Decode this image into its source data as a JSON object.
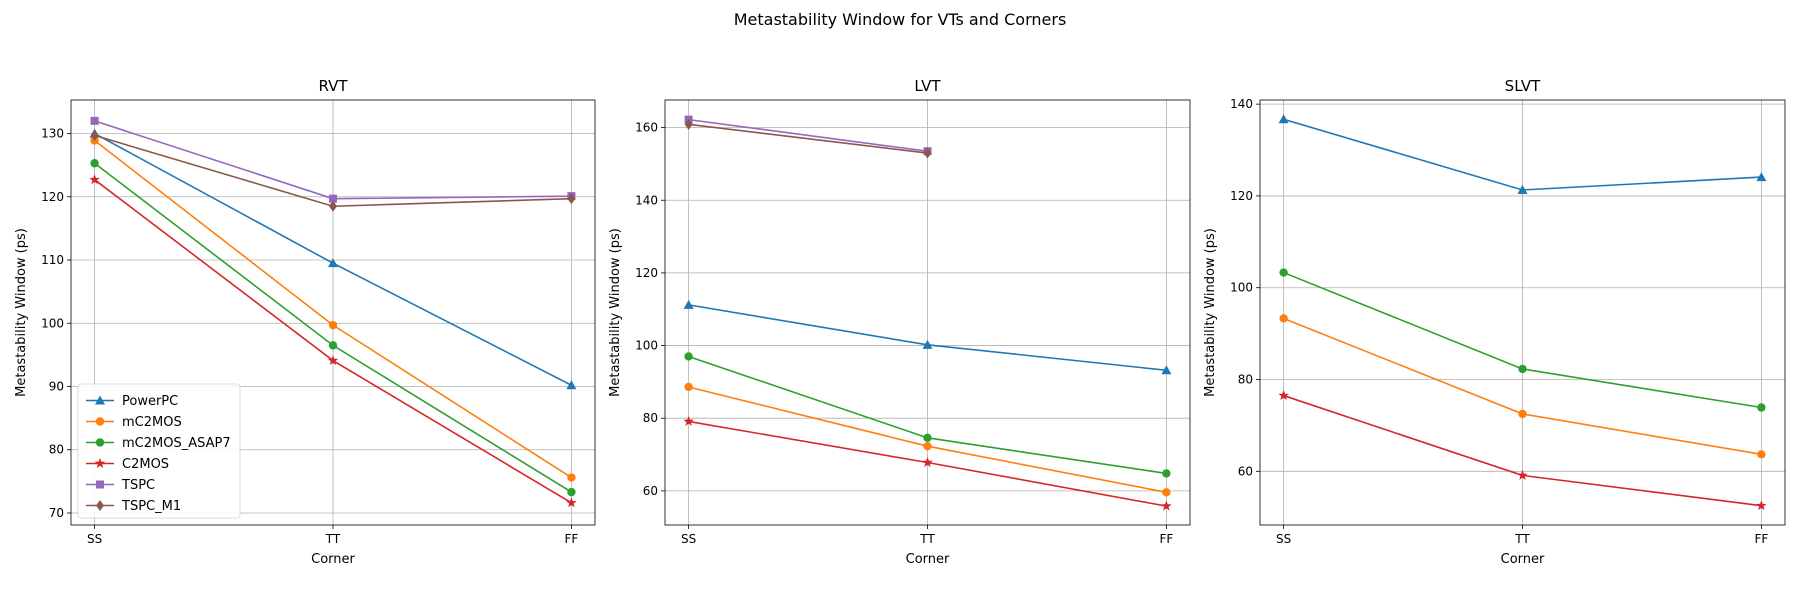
{
  "figure_title": "Metastability Window for VTs and Corners",
  "chart_data": [
    {
      "type": "line",
      "title": "RVT",
      "xlabel": "Corner",
      "ylabel": "Metastability Window (ps)",
      "categories": [
        "SS",
        "TT",
        "FF"
      ],
      "ylim": [
        68.1,
        135.3
      ],
      "yticks": [
        70,
        80,
        90,
        100,
        110,
        120,
        130
      ],
      "grid": true,
      "legend": "lower-left",
      "series": [
        {
          "name": "PowerPC",
          "color": "#1f77b4",
          "marker": "triangle",
          "values": [
            130.0,
            109.5,
            90.2
          ]
        },
        {
          "name": "mC2MOS",
          "color": "#ff7f0e",
          "marker": "circle",
          "values": [
            128.9,
            99.7,
            75.6
          ]
        },
        {
          "name": "mC2MOS_ASAP7",
          "color": "#2ca02c",
          "marker": "circle",
          "values": [
            125.3,
            96.5,
            73.3
          ]
        },
        {
          "name": "C2MOS",
          "color": "#d62728",
          "marker": "star",
          "values": [
            122.7,
            94.1,
            71.6
          ]
        },
        {
          "name": "TSPC",
          "color": "#9467bd",
          "marker": "square",
          "values": [
            132.0,
            119.7,
            120.1
          ]
        },
        {
          "name": "TSPC_M1",
          "color": "#8c564b",
          "marker": "diamond",
          "values": [
            129.7,
            118.5,
            119.7
          ]
        }
      ]
    },
    {
      "type": "line",
      "title": "LVT",
      "xlabel": "Corner",
      "ylabel": "Metastability Window (ps)",
      "categories": [
        "SS",
        "TT",
        "FF"
      ],
      "ylim": [
        50.6,
        167.6
      ],
      "yticks": [
        60,
        80,
        100,
        120,
        140,
        160
      ],
      "grid": true,
      "series": [
        {
          "name": "PowerPC",
          "color": "#1f77b4",
          "marker": "triangle",
          "values": [
            111.2,
            100.2,
            93.2
          ]
        },
        {
          "name": "mC2MOS",
          "color": "#ff7f0e",
          "marker": "circle",
          "values": [
            88.6,
            72.3,
            59.6
          ]
        },
        {
          "name": "mC2MOS_ASAP7",
          "color": "#2ca02c",
          "marker": "circle",
          "values": [
            97.0,
            74.6,
            64.8
          ]
        },
        {
          "name": "C2MOS",
          "color": "#d62728",
          "marker": "star",
          "values": [
            79.1,
            67.8,
            55.8
          ]
        },
        {
          "name": "TSPC",
          "color": "#9467bd",
          "marker": "square",
          "values": [
            162.2,
            153.5,
            null
          ]
        },
        {
          "name": "TSPC_M1",
          "color": "#8c564b",
          "marker": "diamond",
          "values": [
            160.9,
            153.0,
            null
          ]
        }
      ]
    },
    {
      "type": "line",
      "title": "SLVT",
      "xlabel": "Corner",
      "ylabel": "Metastability Window (ps)",
      "categories": [
        "SS",
        "TT",
        "FF"
      ],
      "ylim": [
        48.3,
        140.9
      ],
      "yticks": [
        60,
        80,
        100,
        120,
        140
      ],
      "grid": true,
      "series": [
        {
          "name": "PowerPC",
          "color": "#1f77b4",
          "marker": "triangle",
          "values": [
            136.7,
            121.3,
            124.1
          ]
        },
        {
          "name": "mC2MOS",
          "color": "#ff7f0e",
          "marker": "circle",
          "values": [
            93.3,
            72.5,
            63.7
          ]
        },
        {
          "name": "mC2MOS_ASAP7",
          "color": "#2ca02c",
          "marker": "circle",
          "values": [
            103.3,
            82.3,
            73.9
          ]
        },
        {
          "name": "C2MOS",
          "color": "#d62728",
          "marker": "star",
          "values": [
            76.5,
            59.1,
            52.5
          ]
        }
      ]
    }
  ]
}
